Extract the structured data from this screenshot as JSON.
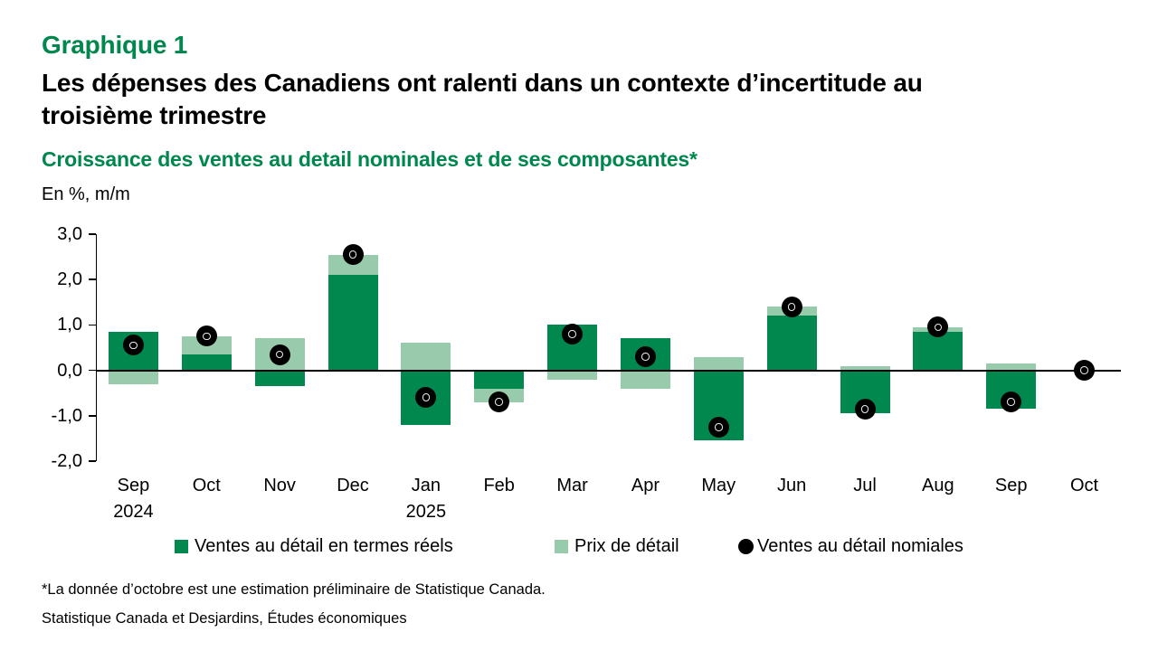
{
  "header": {
    "chart_label": "Graphique 1",
    "title_line1": "Les dépenses des Canadiens ont ralenti dans un contexte d’incertitude au",
    "title_line2": "troisième trimestre",
    "subtitle": "Croissance des ventes au detail nominales et de ses composantes*",
    "units_label": "En %, m/m"
  },
  "chart_data": {
    "type": "bar",
    "title": "Croissance des ventes au detail nominales et de ses composantes*",
    "ylabel": "En %, m/m",
    "ylim": [
      -2.0,
      3.0
    ],
    "ytick_labels": [
      "3,0",
      "2,0",
      "1,0",
      "0,0",
      "-1,0",
      "-2,0"
    ],
    "ytick_values": [
      3,
      2,
      1,
      0,
      -1,
      -2
    ],
    "grid": false,
    "legend_position": "bottom",
    "categories": [
      "Sep",
      "Oct",
      "Nov",
      "Dec",
      "Jan",
      "Feb",
      "Mar",
      "Apr",
      "May",
      "Jun",
      "Jul",
      "Aug",
      "Sep",
      "Oct"
    ],
    "category_sublabels": {
      "0": "2024",
      "4": "2025"
    },
    "series": [
      {
        "name": "Ventes au détail en termes réels",
        "type": "bar",
        "color": "#00884F",
        "values": [
          0.85,
          0.35,
          -0.35,
          2.1,
          -1.2,
          -0.4,
          1.0,
          0.7,
          -1.55,
          1.2,
          -0.95,
          0.85,
          -0.85,
          0
        ]
      },
      {
        "name": "Prix de détail",
        "type": "bar",
        "color": "#97CBAB",
        "values": [
          -0.3,
          0.4,
          0.7,
          0.45,
          0.6,
          -0.3,
          -0.2,
          -0.4,
          0.3,
          0.2,
          0.1,
          0.1,
          0.15,
          0
        ]
      },
      {
        "name": "Ventes au détail nomiales",
        "type": "point",
        "color": "#000000",
        "values": [
          0.55,
          0.75,
          0.35,
          2.55,
          -0.6,
          -0.7,
          0.8,
          0.3,
          -1.25,
          1.4,
          -0.85,
          0.95,
          -0.7,
          0
        ]
      }
    ]
  },
  "footnotes": {
    "note": "*La donnée d’octobre est une estimation préliminaire de Statistique Canada.",
    "source": "Statistique Canada et Desjardins, Études économiques"
  }
}
